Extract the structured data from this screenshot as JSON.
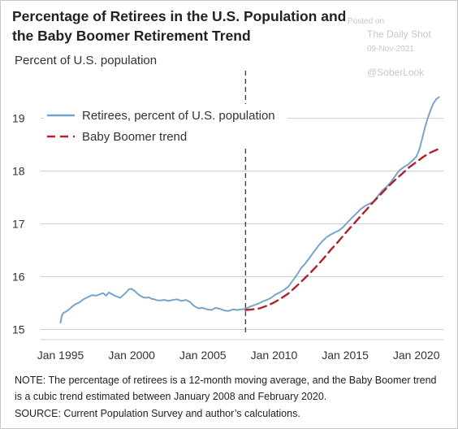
{
  "watermark": {
    "posted": "Posted on",
    "source": "The Daily Shot",
    "date": "09-Nov-2021",
    "handle": "@SoberLook"
  },
  "chart_data": {
    "type": "line",
    "title": "Percentage of Retirees in the U.S. Population and the Baby Boomer Retirement Trend",
    "ylabel": "Percent of U.S. population",
    "xlabel": "",
    "xlim": [
      1993.6,
      2021.9
    ],
    "ylim": [
      14.9,
      19.9
    ],
    "x_ticks": [
      1995,
      2000,
      2005,
      2010,
      2015,
      2020
    ],
    "x_tick_labels": [
      "Jan 1995",
      "Jan 2000",
      "Jan 2005",
      "Jan 2010",
      "Jan 2015",
      "Jan 2020"
    ],
    "y_ticks": [
      15,
      16,
      17,
      18,
      19
    ],
    "y_tick_labels": [
      "15",
      "16",
      "17",
      "18",
      "19"
    ],
    "grid": "horizontal",
    "legend_position": "upper-left",
    "vline": {
      "x": 2008.0,
      "style": "dashed",
      "color": "#444444"
    },
    "series": [
      {
        "name": "Retirees, percent of U.S. population",
        "color": "#7aa3cc",
        "style": "solid",
        "x": [
          1995.0,
          1995.1,
          1995.2,
          1995.4,
          1995.6,
          1995.8,
          1996.0,
          1996.3,
          1996.6,
          1996.9,
          1997.2,
          1997.5,
          1997.8,
          1998.0,
          1998.2,
          1998.4,
          1998.6,
          1998.8,
          1999.0,
          1999.2,
          1999.4,
          1999.6,
          1999.8,
          2000.0,
          2000.2,
          2000.4,
          2000.6,
          2000.8,
          2001.0,
          2001.2,
          2001.4,
          2001.6,
          2001.8,
          2002.0,
          2002.3,
          2002.6,
          2002.9,
          2003.2,
          2003.5,
          2003.8,
          2004.1,
          2004.4,
          2004.7,
          2005.0,
          2005.3,
          2005.6,
          2005.9,
          2006.2,
          2006.5,
          2006.8,
          2007.1,
          2007.4,
          2007.7,
          2008.0,
          2008.3,
          2008.6,
          2008.9,
          2009.2,
          2009.5,
          2009.8,
          2010.1,
          2010.4,
          2010.7,
          2011.0,
          2011.3,
          2011.6,
          2011.9,
          2012.2,
          2012.5,
          2012.8,
          2013.1,
          2013.4,
          2013.7,
          2014.0,
          2014.3,
          2014.6,
          2014.9,
          2015.2,
          2015.5,
          2015.8,
          2016.1,
          2016.4,
          2016.7,
          2017.0,
          2017.3,
          2017.6,
          2017.9,
          2018.2,
          2018.5,
          2018.8,
          2019.1,
          2019.4,
          2019.7,
          2020.0,
          2020.2,
          2020.4,
          2020.6,
          2020.8,
          2021.0,
          2021.2,
          2021.4,
          2021.6
        ],
        "values": [
          15.13,
          15.27,
          15.31,
          15.34,
          15.38,
          15.43,
          15.47,
          15.51,
          15.57,
          15.61,
          15.65,
          15.64,
          15.67,
          15.69,
          15.64,
          15.7,
          15.67,
          15.64,
          15.62,
          15.6,
          15.65,
          15.7,
          15.76,
          15.77,
          15.73,
          15.68,
          15.64,
          15.61,
          15.6,
          15.61,
          15.58,
          15.57,
          15.55,
          15.55,
          15.56,
          15.54,
          15.56,
          15.57,
          15.54,
          15.56,
          15.52,
          15.44,
          15.4,
          15.41,
          15.38,
          15.37,
          15.41,
          15.39,
          15.36,
          15.35,
          15.38,
          15.37,
          15.38,
          15.39,
          15.43,
          15.46,
          15.49,
          15.53,
          15.56,
          15.6,
          15.66,
          15.7,
          15.75,
          15.81,
          15.92,
          16.03,
          16.16,
          16.25,
          16.36,
          16.47,
          16.58,
          16.67,
          16.75,
          16.8,
          16.84,
          16.88,
          16.95,
          17.04,
          17.12,
          17.2,
          17.28,
          17.34,
          17.38,
          17.42,
          17.53,
          17.63,
          17.7,
          17.79,
          17.9,
          18.01,
          18.07,
          18.12,
          18.19,
          18.27,
          18.4,
          18.6,
          18.82,
          19.0,
          19.15,
          19.28,
          19.36,
          19.4
        ]
      },
      {
        "name": "Baby Boomer trend",
        "color": "#b0222d",
        "style": "dashed",
        "x": [
          2008.0,
          2008.5,
          2009.0,
          2009.5,
          2010.0,
          2010.5,
          2011.0,
          2011.5,
          2012.0,
          2012.5,
          2013.0,
          2013.5,
          2014.0,
          2014.5,
          2015.0,
          2015.5,
          2016.0,
          2016.5,
          2017.0,
          2017.5,
          2018.0,
          2018.5,
          2019.0,
          2019.5,
          2020.0,
          2020.5,
          2021.0,
          2021.5
        ],
        "values": [
          15.37,
          15.38,
          15.4,
          15.45,
          15.51,
          15.59,
          15.68,
          15.8,
          15.93,
          16.06,
          16.2,
          16.35,
          16.51,
          16.66,
          16.82,
          16.97,
          17.12,
          17.27,
          17.42,
          17.56,
          17.7,
          17.83,
          17.95,
          18.07,
          18.17,
          18.27,
          18.35,
          18.41
        ]
      }
    ],
    "note": "NOTE: The percentage of retirees is a 12-month moving average, and the Baby Boomer trend is a cubic trend estimated between January 2008 and February 2020.",
    "source": "SOURCE: Current Population Survey and author’s calculations."
  }
}
